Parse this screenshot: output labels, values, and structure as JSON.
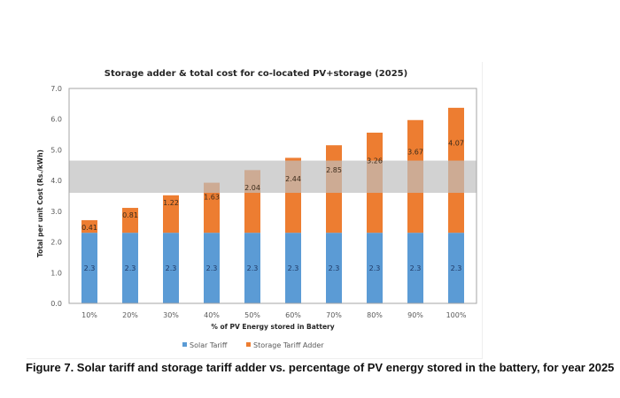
{
  "chart_data": {
    "type": "bar",
    "stacked": true,
    "title": "Storage adder & total cost for co-located PV+storage (2025)",
    "xlabel": "% of PV Energy stored in Battery",
    "ylabel": "Total per unit Cost (Rs./kWh)",
    "ylim": [
      0,
      7
    ],
    "yticks": [
      "0.0",
      "1.0",
      "2.0",
      "3.0",
      "4.0",
      "5.0",
      "6.0",
      "7.0"
    ],
    "grid": false,
    "categories": [
      "10%",
      "20%",
      "30%",
      "40%",
      "50%",
      "60%",
      "70%",
      "80%",
      "90%",
      "100%"
    ],
    "series": [
      {
        "name": "Solar Tariff",
        "color": "#5B9BD5",
        "label_color": "#1F3864",
        "values": [
          2.3,
          2.3,
          2.3,
          2.3,
          2.3,
          2.3,
          2.3,
          2.3,
          2.3,
          2.3
        ]
      },
      {
        "name": "Storage Tariff Adder",
        "color": "#ED7D31",
        "label_color": "#3A2A1A",
        "values": [
          0.41,
          0.81,
          1.22,
          1.63,
          2.04,
          2.44,
          2.85,
          3.26,
          3.67,
          4.07
        ]
      }
    ],
    "shaded_band": {
      "from": 3.6,
      "to": 4.65,
      "color": "#BFBFBF",
      "opacity": 0.7
    },
    "legend_position": "bottom"
  },
  "caption": "Figure 7. Solar tariff and storage tariff adder vs. percentage of PV energy stored in the battery, for year 2025"
}
